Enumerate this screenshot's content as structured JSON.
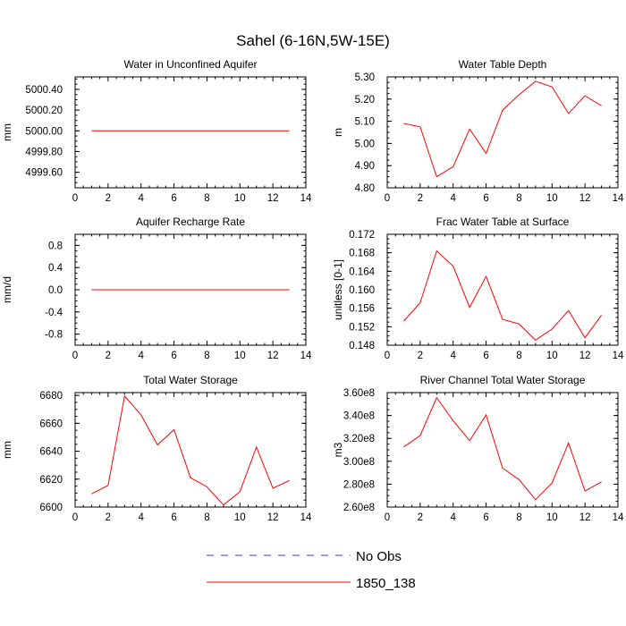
{
  "figure": {
    "title": "Sahel (6-16N,5W-15E)",
    "legend": [
      {
        "label": "No Obs",
        "color": "#3b3bd6",
        "dash": "dashed"
      },
      {
        "label": "1850_138",
        "color": "#ff0000",
        "dash": "solid"
      }
    ]
  },
  "chart_data": [
    {
      "type": "line",
      "title": "Water in Unconfined Aquifer",
      "ylabel": "mm",
      "xlim": [
        0,
        14
      ],
      "ylim": [
        4999.45,
        5000.52
      ],
      "xticks": [
        0,
        2,
        4,
        6,
        8,
        10,
        12,
        14
      ],
      "yticks": [
        4999.6,
        4999.8,
        5000.0,
        5000.2,
        5000.4
      ],
      "ytick_labels": [
        "4999.60",
        "4999.80",
        "5000.00",
        "5000.20",
        "5000.40"
      ],
      "x": [
        1,
        2,
        3,
        4,
        5,
        6,
        7,
        8,
        9,
        10,
        11,
        12,
        13
      ],
      "series": [
        {
          "name": "1850_138",
          "values": [
            5000.0,
            5000.0,
            5000.0,
            5000.0,
            5000.0,
            5000.0,
            5000.0,
            5000.0,
            5000.0,
            5000.0,
            5000.0,
            5000.0,
            5000.0
          ]
        }
      ]
    },
    {
      "type": "line",
      "title": "Water Table Depth",
      "ylabel": "m",
      "xlim": [
        0,
        14
      ],
      "ylim": [
        4.8,
        5.3
      ],
      "xticks": [
        0,
        2,
        4,
        6,
        8,
        10,
        12,
        14
      ],
      "yticks": [
        4.8,
        4.9,
        5.0,
        5.1,
        5.2,
        5.3
      ],
      "ytick_labels": [
        "4.80",
        "4.90",
        "5.00",
        "5.10",
        "5.20",
        "5.30"
      ],
      "x": [
        1,
        2,
        3,
        4,
        5,
        6,
        7,
        8,
        9,
        10,
        11,
        12,
        13
      ],
      "series": [
        {
          "name": "1850_138",
          "values": [
            5.09,
            5.075,
            4.85,
            4.895,
            5.065,
            4.955,
            5.15,
            5.22,
            5.28,
            5.255,
            5.135,
            5.215,
            5.17
          ]
        }
      ]
    },
    {
      "type": "line",
      "title": "Aquifer Recharge Rate",
      "ylabel": "mm/d",
      "xlim": [
        0,
        14
      ],
      "ylim": [
        -1.0,
        1.0
      ],
      "xticks": [
        0,
        2,
        4,
        6,
        8,
        10,
        12,
        14
      ],
      "yticks": [
        -0.8,
        -0.4,
        0.0,
        0.4,
        0.8
      ],
      "ytick_labels": [
        "-0.8",
        "-0.4",
        "0.0",
        "0.4",
        "0.8"
      ],
      "x": [
        1,
        2,
        3,
        4,
        5,
        6,
        7,
        8,
        9,
        10,
        11,
        12,
        13
      ],
      "series": [
        {
          "name": "1850_138",
          "values": [
            0,
            0,
            0,
            0,
            0,
            0,
            0,
            0,
            0,
            0,
            0,
            0,
            0
          ]
        }
      ]
    },
    {
      "type": "line",
      "title": "Frac Water Table at Surface",
      "ylabel": "unitless [0-1]",
      "xlim": [
        0,
        14
      ],
      "ylim": [
        0.148,
        0.172
      ],
      "xticks": [
        0,
        2,
        4,
        6,
        8,
        10,
        12,
        14
      ],
      "yticks": [
        0.148,
        0.152,
        0.156,
        0.16,
        0.164,
        0.168,
        0.172
      ],
      "ytick_labels": [
        "0.148",
        "0.152",
        "0.156",
        "0.160",
        "0.164",
        "0.168",
        "0.172"
      ],
      "x": [
        1,
        2,
        3,
        4,
        5,
        6,
        7,
        8,
        9,
        10,
        11,
        12,
        13
      ],
      "series": [
        {
          "name": "1850_138",
          "values": [
            0.1532,
            0.1572,
            0.1684,
            0.1651,
            0.1562,
            0.1629,
            0.1536,
            0.1526,
            0.1491,
            0.1515,
            0.1555,
            0.1496,
            0.1545
          ]
        }
      ]
    },
    {
      "type": "line",
      "title": "Total Water Storage",
      "ylabel": "mm",
      "xlim": [
        0,
        14
      ],
      "ylim": [
        6600,
        6682
      ],
      "xticks": [
        0,
        2,
        4,
        6,
        8,
        10,
        12,
        14
      ],
      "yticks": [
        6600,
        6620,
        6640,
        6660,
        6680
      ],
      "ytick_labels": [
        "6600",
        "6620",
        "6640",
        "6660",
        "6680"
      ],
      "x": [
        1,
        2,
        3,
        4,
        5,
        6,
        7,
        8,
        9,
        10,
        11,
        12,
        13
      ],
      "series": [
        {
          "name": "1850_138",
          "values": [
            6609.5,
            6615.5,
            6679.5,
            6666,
            6644.5,
            6655.5,
            6621,
            6614.5,
            6601.5,
            6611,
            6643,
            6613.5,
            6619
          ]
        }
      ]
    },
    {
      "type": "line",
      "title": "River Channel Total Water Storage",
      "ylabel": "m3",
      "xlim": [
        0,
        14
      ],
      "ylim": [
        260000000,
        360000000
      ],
      "xticks": [
        0,
        2,
        4,
        6,
        8,
        10,
        12,
        14
      ],
      "yticks": [
        260000000,
        280000000,
        300000000,
        320000000,
        340000000,
        360000000
      ],
      "ytick_labels": [
        "2.60e8",
        "2.80e8",
        "3.00e8",
        "3.20e8",
        "3.40e8",
        "3.60e8"
      ],
      "x": [
        1,
        2,
        3,
        4,
        5,
        6,
        7,
        8,
        9,
        10,
        11,
        12,
        13
      ],
      "series": [
        {
          "name": "1850_138",
          "values": [
            312500000,
            322500000,
            355500000,
            335500000,
            318000000,
            340500000,
            294000000,
            284000000,
            266500000,
            281000000,
            316000000,
            274000000,
            282000000
          ]
        }
      ]
    }
  ]
}
